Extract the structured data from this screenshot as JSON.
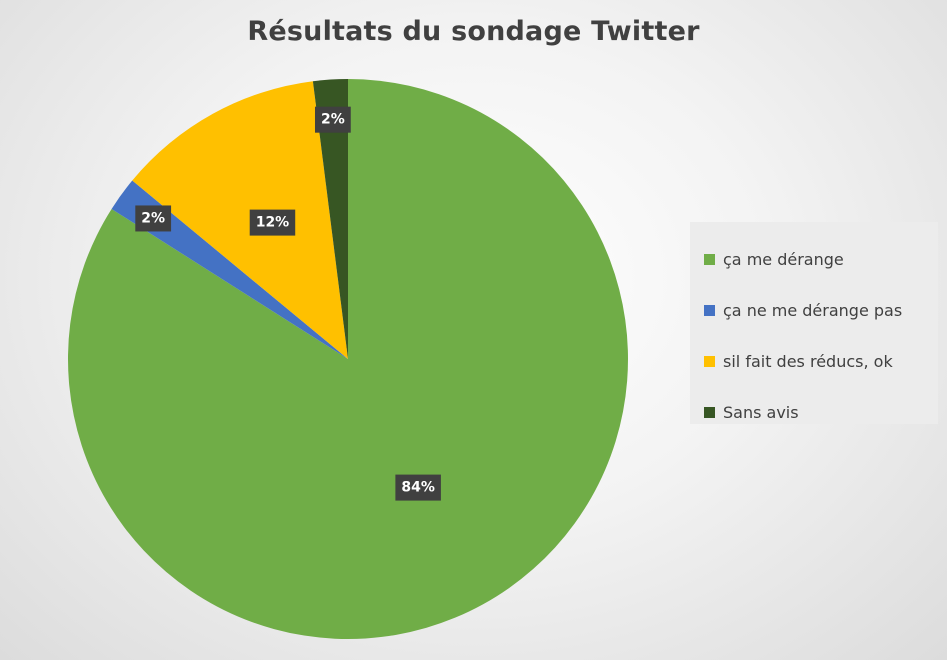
{
  "chart_data": {
    "type": "pie",
    "title": "Résultats du sondage Twitter",
    "start_angle_deg": 0,
    "direction": "clockwise",
    "legend_position": "right",
    "slices": [
      {
        "label": "ça me dérange",
        "value": 84,
        "display": "84%",
        "color": "#70ad47"
      },
      {
        "label": "ça ne me dérange pas",
        "value": 2,
        "display": "2%",
        "color": "#4472c4"
      },
      {
        "label": "sil fait des réducs, ok",
        "value": 12,
        "display": "12%",
        "color": "#ffc000"
      },
      {
        "label": "Sans avis",
        "value": 2,
        "display": "2%",
        "color": "#375623"
      }
    ]
  }
}
